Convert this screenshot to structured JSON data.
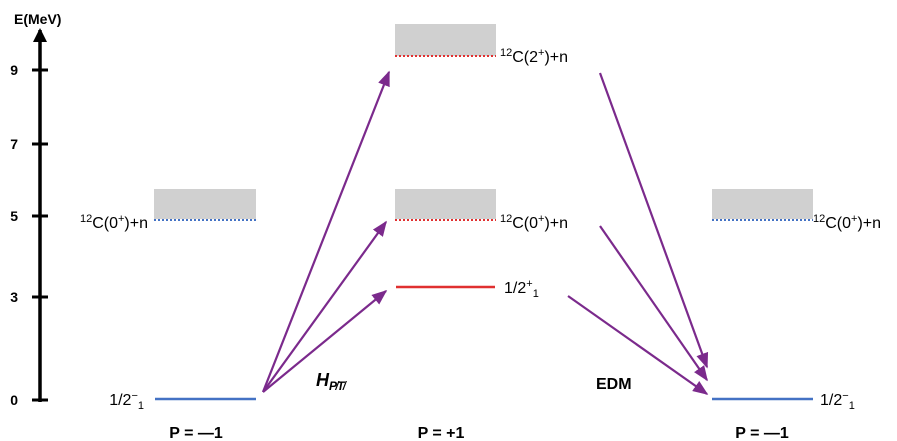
{
  "axis": {
    "label": "E(MeV)",
    "ticks": [
      {
        "value": 0,
        "label": "0"
      },
      {
        "value": 3,
        "label": "3"
      },
      {
        "value": 5,
        "label": "5"
      },
      {
        "value": 7,
        "label": "7"
      },
      {
        "value": 9,
        "label": "9"
      }
    ]
  },
  "columns": {
    "left": {
      "parity": "P = —1"
    },
    "middle": {
      "parity": "P = +1"
    },
    "right": {
      "parity": "P = —1"
    }
  },
  "levels": {
    "left_ground": {
      "energy": 0,
      "label_main": "1/2",
      "label_sup": "−",
      "label_sub": "1",
      "color": "#4472C4"
    },
    "left_threshold": {
      "energy": 4.95,
      "label_pre": "12",
      "label_main": "C(0",
      "label_sup": "+",
      "label_post": ")+n",
      "color": "#4472C4"
    },
    "middle_excited": {
      "energy": 3.1,
      "label_main": "1/2",
      "label_sup": "+",
      "label_sub": "1",
      "color": "#E03030"
    },
    "middle_threshold_0": {
      "energy": 4.95,
      "label_pre": "12",
      "label_main": "C(0",
      "label_sup": "+",
      "label_post": ")+n",
      "color": "#E03030"
    },
    "middle_threshold_2": {
      "energy": 9.4,
      "label_pre": "12",
      "label_main": "C(2",
      "label_sup": "+",
      "label_post": ")+n",
      "color": "#E03030"
    },
    "right_ground": {
      "energy": 0,
      "label_main": "1/2",
      "label_sup": "−",
      "label_sub": "1",
      "color": "#4472C4"
    },
    "right_threshold": {
      "energy": 4.95,
      "label_pre": "12",
      "label_main": "C(0",
      "label_sup": "+",
      "label_post": ")+n",
      "color": "#4472C4"
    }
  },
  "operators": {
    "left": "H",
    "left_sub": "P̸T̸",
    "right": "EDM"
  },
  "colors": {
    "arrow": "#7B2A8C",
    "continuum": "#D0D0D0",
    "axis": "#000000"
  }
}
